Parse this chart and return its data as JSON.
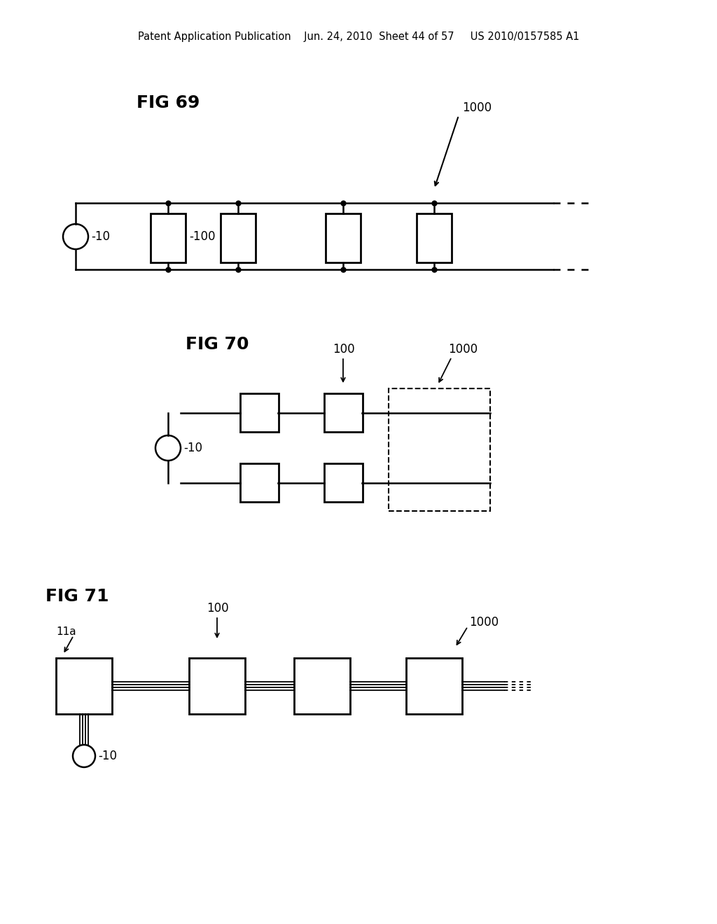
{
  "background_color": "#ffffff",
  "header_text": "Patent Application Publication    Jun. 24, 2010  Sheet 44 of 57     US 2010/0157585 A1",
  "fig69_label": "FIG 69",
  "fig70_label": "FIG 70",
  "fig71_label": "FIG 71",
  "label_1000": "1000",
  "label_100": "100",
  "label_10": "10",
  "label_11a": "11a"
}
